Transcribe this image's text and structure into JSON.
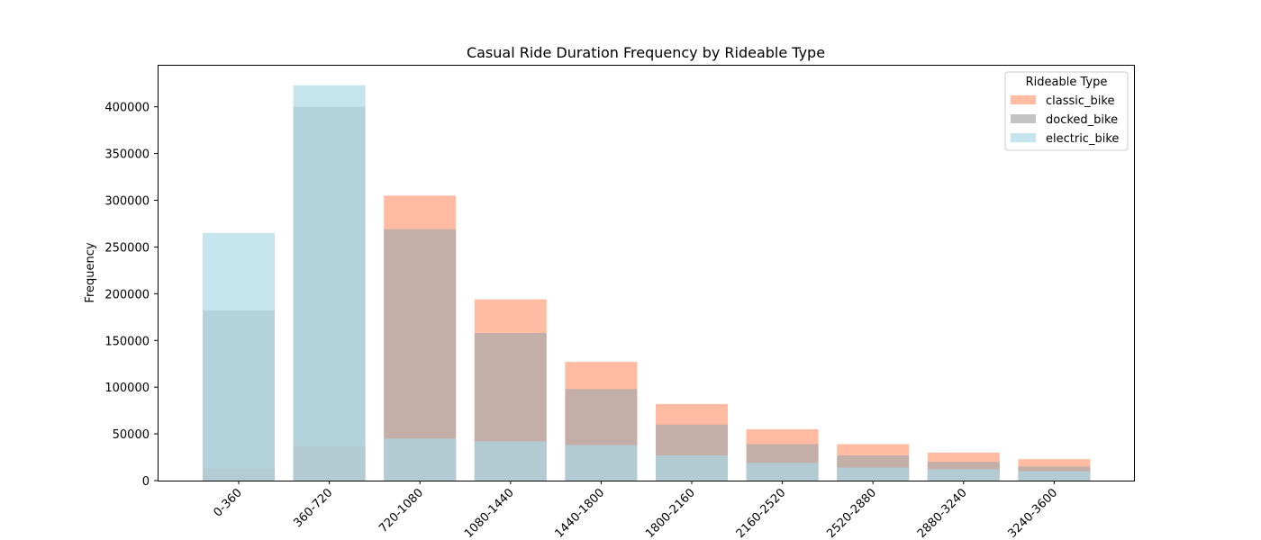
{
  "chart_data": {
    "type": "bar",
    "title": "Casual Ride Duration Frequency by Rideable Type",
    "xlabel": "",
    "ylabel": "Frequency",
    "ylim": [
      0,
      445000
    ],
    "yticks": [
      0,
      50000,
      100000,
      150000,
      200000,
      250000,
      300000,
      350000,
      400000
    ],
    "grid": false,
    "categories": [
      "0-360",
      "360-720",
      "720-1080",
      "1080-1440",
      "1440-1800",
      "1800-2160",
      "2160-2520",
      "2520-2880",
      "2880-3240",
      "3240-3600"
    ],
    "series": [
      {
        "name": "classic_bike",
        "color": "#FFA07A",
        "values": [
          13000,
          37000,
          305000,
          194000,
          127000,
          82000,
          55000,
          39000,
          30000,
          23000
        ]
      },
      {
        "name": "docked_bike",
        "color": "#A9A9A9",
        "values": [
          182000,
          400000,
          269000,
          158000,
          98000,
          60000,
          39000,
          27000,
          20000,
          15000
        ]
      },
      {
        "name": "electric_bike",
        "color": "#ADD8E6",
        "values": [
          265000,
          423000,
          45000,
          42000,
          38000,
          27000,
          19000,
          14000,
          12000,
          10000
        ]
      }
    ],
    "overlay": true,
    "legend": {
      "title": "Rideable Type",
      "position": "upper right"
    }
  }
}
